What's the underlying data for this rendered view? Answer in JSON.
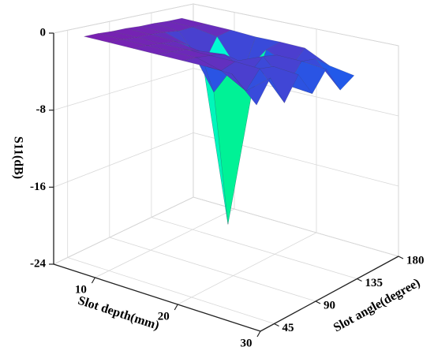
{
  "chart_data": {
    "type": "surface",
    "zlabel": "S11(dB)",
    "xlabel": "Slot depth(mm)",
    "ylabel": "Slot angle(degree)",
    "xlim": [
      5,
      30
    ],
    "xticks": [
      10,
      20,
      30
    ],
    "ylim": [
      30,
      180
    ],
    "yticks": [
      45,
      90,
      135,
      180
    ],
    "zlim": [
      -24,
      0
    ],
    "zticks": [
      -24,
      -16,
      -8,
      0
    ],
    "grid": true,
    "colormap": [
      "#ff0000",
      "#ff8000",
      "#ffff00",
      "#00e000",
      "#00ffff",
      "#0070ff",
      "#7a20b0"
    ],
    "x": [
      7,
      10,
      13,
      16,
      19,
      22,
      25,
      28
    ],
    "y": [
      45,
      60,
      75,
      90,
      105,
      120,
      135,
      150
    ],
    "z": [
      [
        -0.3,
        -0.3,
        -0.4,
        -0.4,
        -0.5,
        -0.5,
        -0.6,
        -0.6
      ],
      [
        -0.4,
        -0.4,
        -0.5,
        -0.5,
        -0.6,
        -0.8,
        -0.7,
        -0.7
      ],
      [
        -0.5,
        -0.5,
        -0.6,
        -0.7,
        -1.5,
        -4.0,
        -1.2,
        -0.8
      ],
      [
        -0.6,
        -0.6,
        -0.7,
        -1.2,
        -6.0,
        -21.0,
        -5.0,
        -1.0
      ],
      [
        -0.7,
        -0.7,
        -0.8,
        -1.0,
        -2.0,
        -5.5,
        -1.5,
        -1.0
      ],
      [
        -0.8,
        -1.5,
        -0.9,
        -2.5,
        -1.0,
        -1.2,
        -2.8,
        -1.1
      ],
      [
        -1.0,
        -3.0,
        -1.1,
        -1.2,
        -3.5,
        -1.3,
        -1.4,
        -2.5
      ],
      [
        -3.5,
        -1.2,
        -4.0,
        -1.5,
        -3.8,
        -1.6,
        -4.2,
        -3.0
      ]
    ]
  }
}
